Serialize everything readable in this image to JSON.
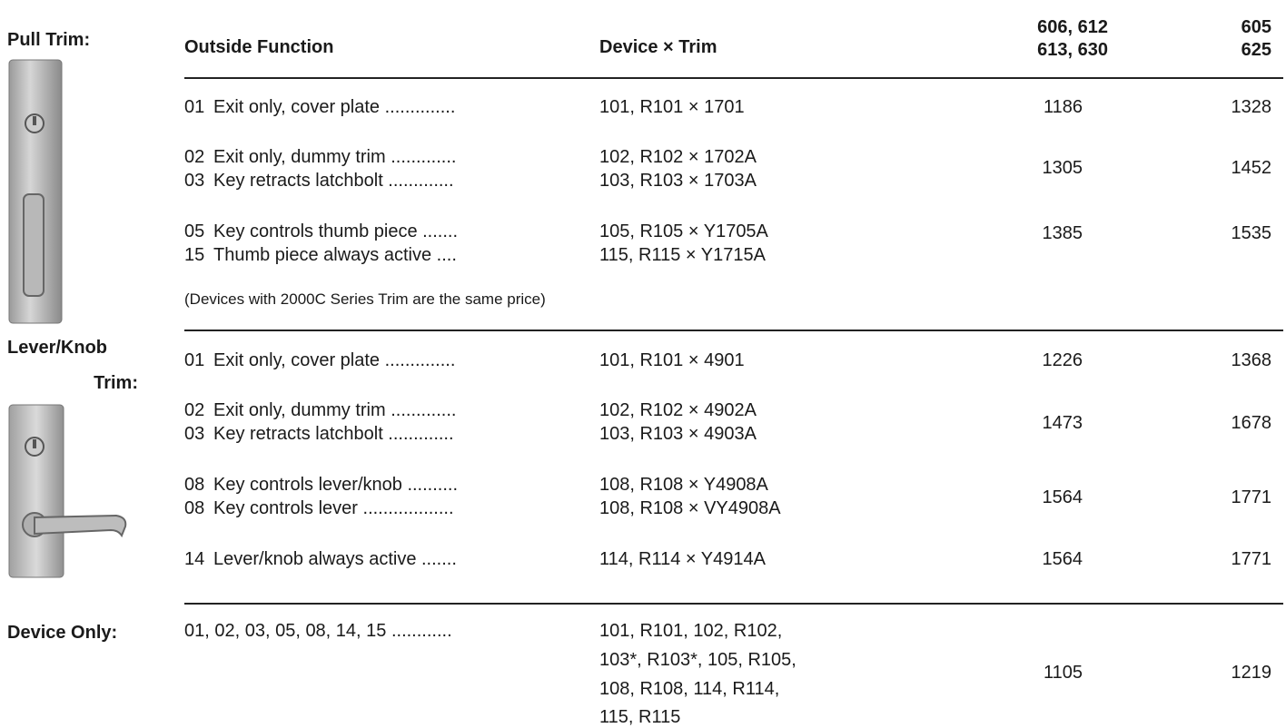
{
  "headers": {
    "function": "Outside Function",
    "device": "Device × Trim",
    "finish1": [
      "606, 612",
      "613, 630"
    ],
    "finish2": [
      "605",
      "625"
    ]
  },
  "sections": [
    {
      "label": [
        "Pull Trim:"
      ],
      "groups": [
        {
          "rows": [
            {
              "code": "01",
              "desc": "Exit only, cover plate ..............",
              "device": "101, R101 × 1701"
            }
          ],
          "price1": 1186,
          "price2": 1328
        },
        {
          "rows": [
            {
              "code": "02",
              "desc": "Exit only, dummy trim .............",
              "device": "102, R102 × 1702A"
            },
            {
              "code": "03",
              "desc": "Key retracts latchbolt .............",
              "device": "103, R103 × 1703A"
            }
          ],
          "price1": 1305,
          "price2": 1452
        },
        {
          "rows": [
            {
              "code": "05",
              "desc": "Key controls thumb piece .......",
              "device": "105, R105 × Y1705A"
            },
            {
              "code": "15",
              "desc": "Thumb piece always active ....",
              "device": "115, R115 × Y1715A"
            }
          ],
          "price1": 1385,
          "price2": 1535
        }
      ],
      "note": "(Devices with 2000C Series Trim are the same price)"
    },
    {
      "label": [
        "Lever/Knob",
        "Trim:"
      ],
      "groups": [
        {
          "rows": [
            {
              "code": "01",
              "desc": "Exit only, cover plate ..............",
              "device": "101, R101 × 4901"
            }
          ],
          "price1": 1226,
          "price2": 1368
        },
        {
          "rows": [
            {
              "code": "02",
              "desc": "Exit only, dummy trim .............",
              "device": "102, R102 × 4902A"
            },
            {
              "code": "03",
              "desc": "Key retracts latchbolt .............",
              "device": "103, R103 × 4903A"
            }
          ],
          "price1": 1473,
          "price2": 1678
        },
        {
          "rows": [
            {
              "code": "08",
              "desc": "Key controls lever/knob ..........",
              "device": "108, R108 × Y4908A"
            },
            {
              "code": "08",
              "desc": "Key controls lever ..................",
              "device": "108, R108 × VY4908A"
            }
          ],
          "price1": 1564,
          "price2": 1771
        },
        {
          "rows": [
            {
              "code": "14",
              "desc": "Lever/knob always active .......",
              "device": "114, R114 × Y4914A"
            }
          ],
          "price1": 1564,
          "price2": 1771
        }
      ]
    },
    {
      "label": [
        "Device Only:"
      ],
      "groups": [
        {
          "desc": "01, 02, 03, 05, 08, 14, 15 ............",
          "device": [
            "101, R101, 102, R102,",
            "103*, R103*, 105, R105,",
            "108, R108, 114, R114,",
            "115, R115"
          ],
          "price1": 1105,
          "price2": 1219
        }
      ]
    }
  ]
}
